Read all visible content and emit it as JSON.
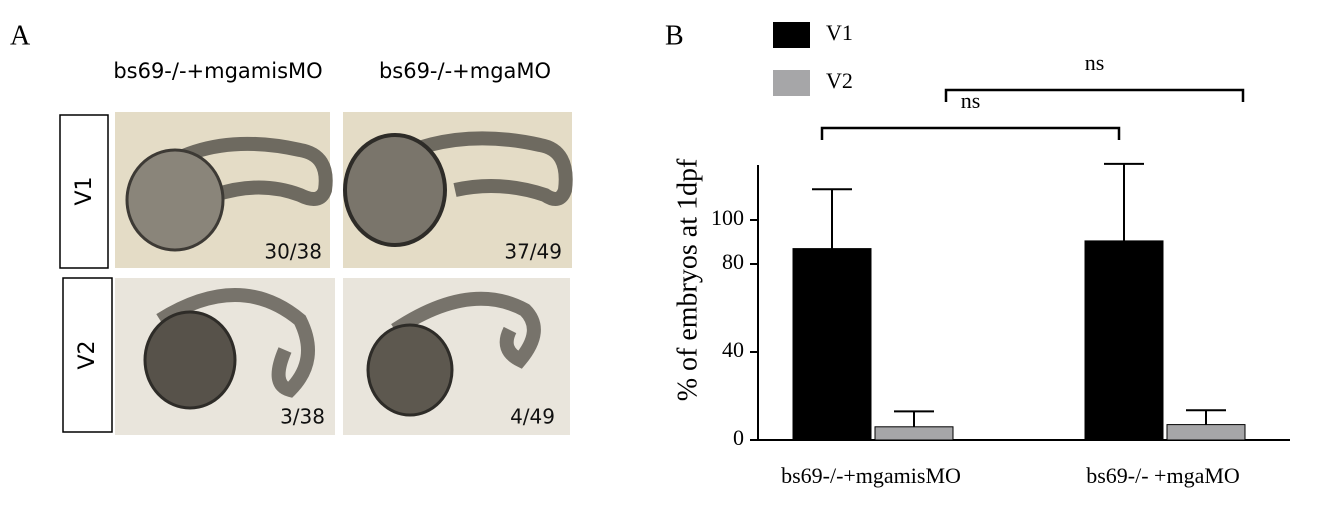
{
  "panel_a": {
    "label": "A",
    "columns": [
      "bs69-/-+mgamisMO",
      "bs69-/-+mgaMO"
    ],
    "rows": [
      {
        "label": "V1",
        "counts": [
          "30/38",
          "37/49"
        ]
      },
      {
        "label": "V2",
        "counts": [
          "3/38",
          "4/49"
        ]
      }
    ]
  },
  "chart_data": {
    "type": "bar",
    "label": "B",
    "ylabel": "% of embryos at 1dpf",
    "categories": [
      "bs69-/-+mgamisMO",
      "bs69-/- +mgaMO"
    ],
    "series": [
      {
        "name": "V1",
        "color": "#000000",
        "values": [
          87,
          90.5
        ],
        "errors": [
          27,
          35
        ]
      },
      {
        "name": "V2",
        "color": "#a6a6a8",
        "values": [
          6,
          7
        ],
        "errors": [
          7,
          6.5
        ]
      }
    ],
    "ylim": [
      0,
      125
    ],
    "yticks": [
      0,
      40,
      80,
      100
    ],
    "annotations": [
      "ns",
      "ns"
    ]
  }
}
